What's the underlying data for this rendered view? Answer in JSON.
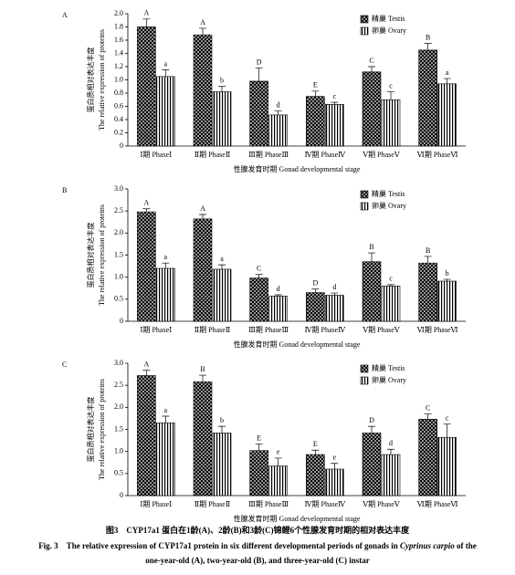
{
  "chart_data": [
    {
      "type": "bar",
      "panel": "A",
      "categories": [
        "Ⅰ期 PhaseⅠ",
        "Ⅱ期 PhaseⅡ",
        "Ⅲ期 PhaseⅢ",
        "Ⅳ期 PhaseⅣ",
        "Ⅴ期 PhaseⅤ",
        "Ⅵ期 PhaseⅥ"
      ],
      "series": [
        {
          "name": "精巢 Testis",
          "color": "#000000",
          "pattern": "dots",
          "values": [
            1.8,
            1.68,
            0.98,
            0.75,
            1.12,
            1.45
          ],
          "errors": [
            0.12,
            0.1,
            0.2,
            0.08,
            0.08,
            0.1
          ],
          "letters": [
            "A",
            "A",
            "D",
            "E",
            "C",
            "B"
          ]
        },
        {
          "name": "卵巢 Ovary",
          "color": "#000000",
          "pattern": "stripes",
          "values": [
            1.05,
            0.82,
            0.47,
            0.63,
            0.7,
            0.94
          ],
          "errors": [
            0.1,
            0.08,
            0.06,
            0.03,
            0.12,
            0.08
          ],
          "letters": [
            "a",
            "b",
            "d",
            "c",
            "c",
            "a"
          ]
        }
      ],
      "ylim": [
        0,
        2
      ],
      "yticks": [
        0,
        0.2,
        0.4,
        0.6,
        0.8,
        {
          "value": 1,
          "label": "1.0"
        },
        1.2,
        1.4,
        1.6,
        1.8,
        {
          "value": 2,
          "label": "2.0"
        }
      ],
      "y_label": "蛋白质相对表达丰度",
      "y_label_en": "The relative expression of proteins",
      "x_label": "性腺发育时期 Gonad developmental stage",
      "legend": "upper right"
    },
    {
      "type": "bar",
      "panel": "B",
      "categories": [
        "Ⅰ期 PhaseⅠ",
        "Ⅱ期 PhaseⅡ",
        "Ⅲ期 PhaseⅢ",
        "Ⅳ期 PhaseⅣ",
        "Ⅴ期 PhaseⅤ",
        "Ⅵ期 PhaseⅥ"
      ],
      "series": [
        {
          "name": "精巢 Testis",
          "color": "#000000",
          "pattern": "dots",
          "values": [
            2.48,
            2.32,
            0.98,
            0.65,
            1.35,
            1.32
          ],
          "errors": [
            0.07,
            0.1,
            0.08,
            0.08,
            0.2,
            0.15
          ],
          "letters": [
            "A",
            "A",
            "C",
            "D",
            "B",
            "B"
          ]
        },
        {
          "name": "卵巢 Ovary",
          "color": "#000000",
          "pattern": "stripes",
          "values": [
            1.2,
            1.18,
            0.57,
            0.59,
            0.8,
            0.91
          ],
          "errors": [
            0.12,
            0.1,
            0.03,
            0.05,
            0.03,
            0.04
          ],
          "letters": [
            "a",
            "a",
            "d",
            "d",
            "c",
            "b"
          ]
        }
      ],
      "ylim": [
        0,
        3
      ],
      "yticks": [
        0,
        0.5,
        {
          "value": 1,
          "label": "1.0"
        },
        1.5,
        {
          "value": 2,
          "label": "2.0"
        },
        2.5,
        {
          "value": 3,
          "label": "3.0"
        }
      ],
      "y_label": "蛋白质相对表达丰度",
      "y_label_en": "The relative expression of proteins",
      "x_label": "性腺发育时期 Gonad developmental stage",
      "legend": "upper right"
    },
    {
      "type": "bar",
      "panel": "C",
      "categories": [
        "Ⅰ期 PhaseⅠ",
        "Ⅱ期 PhaseⅡ",
        "Ⅲ期 PhaseⅢ",
        "Ⅳ期 PhaseⅣ",
        "Ⅴ期 PhaseⅤ",
        "Ⅵ期 PhaseⅥ"
      ],
      "series": [
        {
          "name": "精巢 Testis",
          "color": "#000000",
          "pattern": "dots",
          "values": [
            2.72,
            2.58,
            1.02,
            0.93,
            1.42,
            1.73
          ],
          "errors": [
            0.12,
            0.15,
            0.15,
            0.1,
            0.15,
            0.12
          ],
          "letters": [
            "A",
            "B",
            "E",
            "E",
            "D",
            "C"
          ]
        },
        {
          "name": "卵巢 Ovary",
          "color": "#000000",
          "pattern": "stripes",
          "values": [
            1.65,
            1.42,
            0.67,
            0.6,
            0.93,
            1.32
          ],
          "errors": [
            0.15,
            0.15,
            0.18,
            0.13,
            0.12,
            0.3
          ],
          "letters": [
            "a",
            "b",
            "e",
            "e",
            "d",
            "c"
          ]
        }
      ],
      "ylim": [
        0,
        3
      ],
      "yticks": [
        0,
        0.5,
        {
          "value": 1,
          "label": "1.0"
        },
        1.5,
        {
          "value": 2,
          "label": "2.0"
        },
        2.5,
        {
          "value": 3,
          "label": "3.0"
        }
      ],
      "y_label": "蛋白质相对表达丰度",
      "y_label_en": "The relative expression of proteins",
      "x_label": "性腺发育时期 Gonad developmental stage",
      "legend": "upper right"
    }
  ],
  "caption": {
    "cn": "图3　CYP17a1 蛋白在1龄(A)、2龄(B)和3龄(C)锦鲤6个性腺发育时期的相对表达丰度",
    "en_parts": [
      "Fig. 3　The relative expression of CYP17a1 protein in six different developmental periods of gonads in ",
      "Cyprinus carpio",
      " of the"
    ],
    "en_line2": "one-year-old (A), two-year-old (B), and three-year-old (C) instar"
  }
}
